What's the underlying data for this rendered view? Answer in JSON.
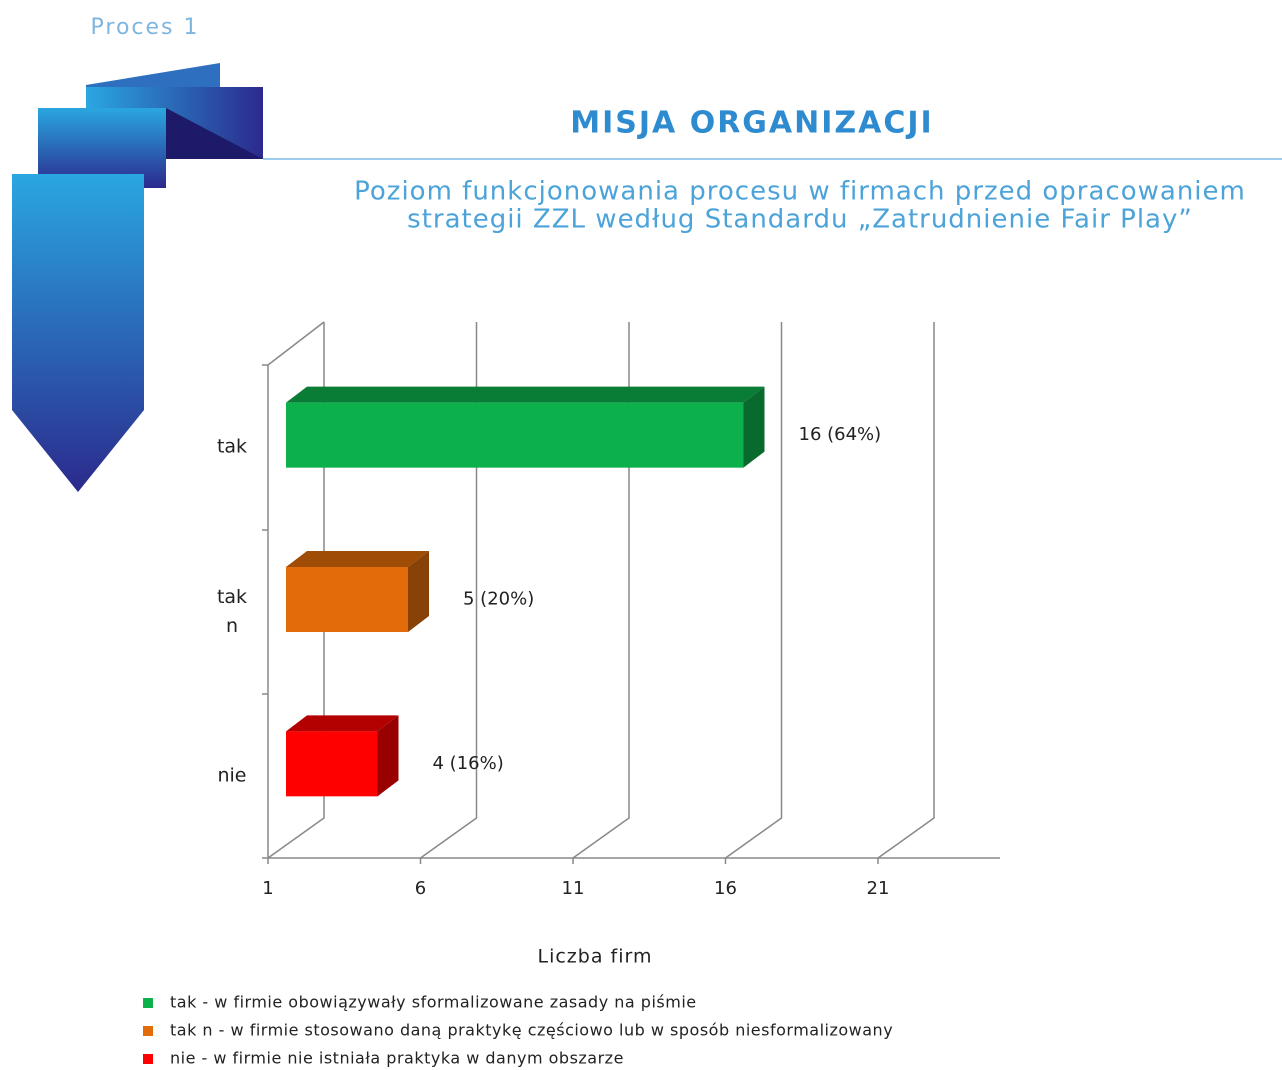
{
  "header": {
    "section": "Proces 1",
    "title": "MISJA ORGANIZACJI"
  },
  "chart_data": {
    "type": "bar3d",
    "orientation": "horizontal",
    "title": [
      "Poziom funkcjonowania procesu w firmach przed opracowaniem",
      "strategii ZZL według Standardu „Zatrudnienie Fair Play”"
    ],
    "categories": [
      "tak",
      "tak n",
      "nie"
    ],
    "values": [
      16,
      5,
      4
    ],
    "value_labels": [
      "16 (64%)",
      "5 (20%)",
      "4 (16%)"
    ],
    "colors": [
      "#0db14b",
      "#e36c0a",
      "#ff0000"
    ],
    "xlabel": "Liczba firm",
    "xlim": [
      1,
      25
    ],
    "xticks": [
      1,
      6,
      11,
      16,
      21
    ],
    "grid": true,
    "legend": [
      "tak - w firmie obowiązywały sformalizowane zasady na piśmie",
      "tak n - w firmie stosowano daną praktykę częściowo lub w sposób niesformalizowany",
      "nie - w firmie nie istniała praktyka w danym obszarze"
    ]
  }
}
